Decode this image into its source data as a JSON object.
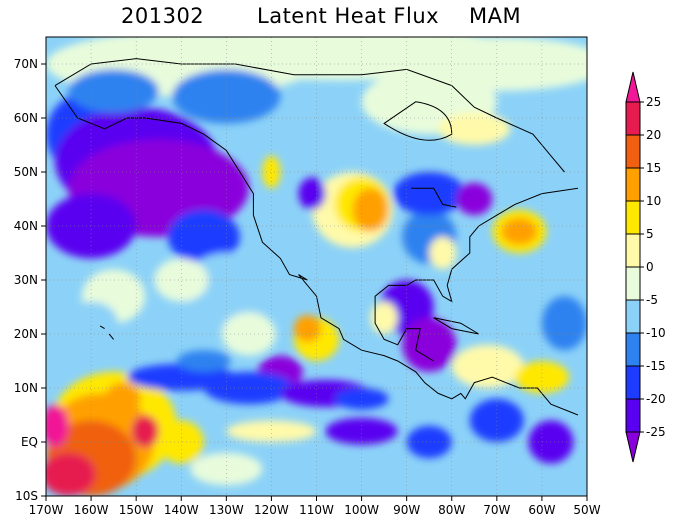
{
  "title": {
    "date": "201302",
    "name": "Latent Heat Flux",
    "season": "MAM"
  },
  "chart_data": {
    "type": "heatmap",
    "title": "Latent Heat Flux",
    "xlabel": "",
    "ylabel": "",
    "xlim": [
      -170,
      -50
    ],
    "ylim": [
      -10,
      75
    ],
    "x_ticks": [
      "170W",
      "160W",
      "150W",
      "140W",
      "130W",
      "120W",
      "110W",
      "100W",
      "90W",
      "80W",
      "70W",
      "60W",
      "50W"
    ],
    "y_ticks": [
      "10S",
      "EQ",
      "10N",
      "20N",
      "30N",
      "40N",
      "50N",
      "60N",
      "70N"
    ],
    "colorbar": {
      "levels": [
        -25,
        -20,
        -15,
        -10,
        -5,
        0,
        5,
        10,
        15,
        20,
        25
      ],
      "labels": [
        "-25",
        "-20",
        "-15",
        "-10",
        "-5",
        "0",
        "5",
        "10",
        "15",
        "20",
        "25"
      ],
      "colors": [
        "#8a00dc",
        "#5a00f0",
        "#1e3cff",
        "#2e82f0",
        "#8cd2f8",
        "#e8fcdc",
        "#fffaaa",
        "#ffe800",
        "#ffa000",
        "#f06010",
        "#e61c50",
        "#f01896"
      ]
    },
    "grid": true,
    "features": [
      {
        "region": "North Pacific 140-170W 40-60N",
        "anomaly": "strong negative (below -20)"
      },
      {
        "region": "Tropical Pacific 140-165W 5S-10N",
        "anomaly": "strong positive (above 20)"
      },
      {
        "region": "Western US 95-115W 30-50N",
        "anomaly": "positive (10 to 15)"
      },
      {
        "region": "Off Mexico 107-115W 15-22N",
        "anomaly": "positive (10 to 20)"
      },
      {
        "region": "Off US East Coast 60-70W 37-42N",
        "anomaly": "positive (15 to 20)"
      },
      {
        "region": "Gulf of Mexico / Caribbean 80-95W 10-28N",
        "anomaly": "negative (-15 to -25)"
      },
      {
        "region": "Tropical Atlantic 60-75W 10-20N",
        "anomaly": "weak positive (0 to 10)"
      },
      {
        "region": "Canada interior 70-100W 55-70N",
        "anomaly": "near zero (0 to 5)"
      }
    ]
  }
}
